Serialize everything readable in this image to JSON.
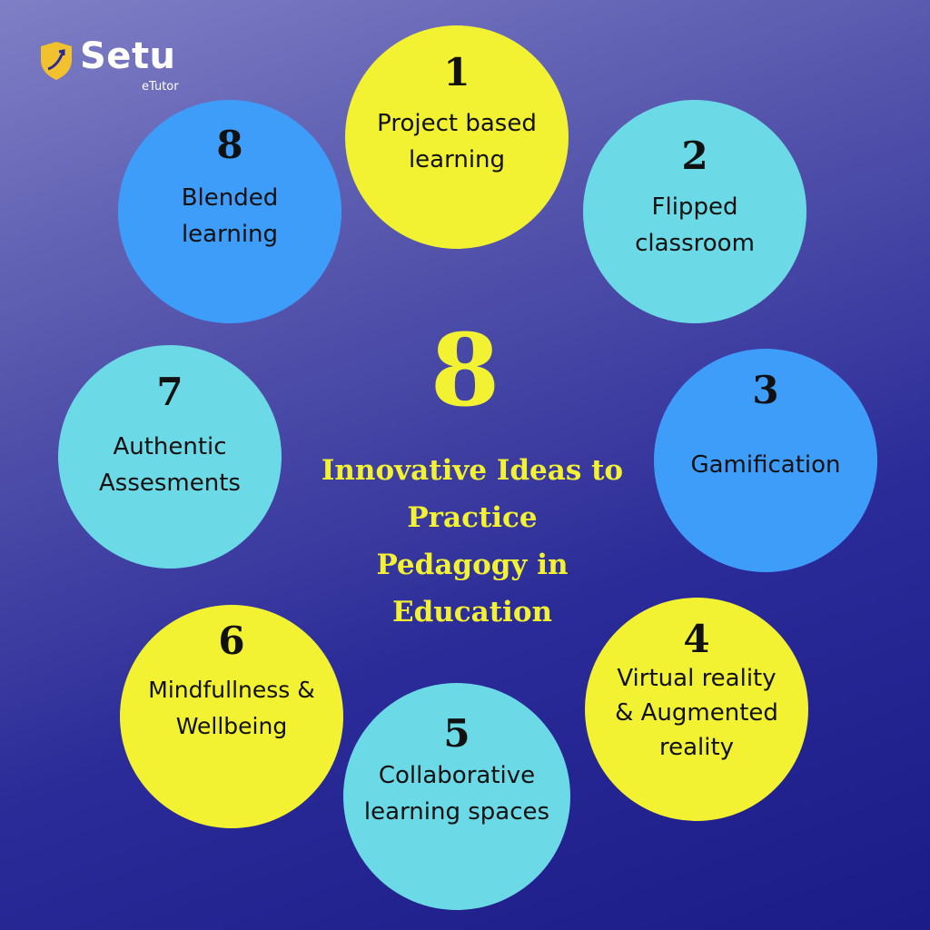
{
  "brand": {
    "name": "Setu",
    "sub": "eTutor",
    "icon": "shield-icon",
    "colors": {
      "shield": "#f2c12e",
      "text": "#ffffff"
    }
  },
  "center": {
    "number": "8",
    "title": "Innovative Ideas to\nPractice\nPedagogy in\nEducation"
  },
  "colors": {
    "yellow": "#f2f232",
    "cyan": "#6cd9e6",
    "blue": "#3f9dfa",
    "background_top": "#7f7fc6",
    "background_bottom": "#1c1c88"
  },
  "ideas": [
    {
      "number": "1",
      "label": "Project based\nlearning",
      "color": "yellow"
    },
    {
      "number": "2",
      "label": "Flipped\nclassroom",
      "color": "cyan"
    },
    {
      "number": "3",
      "label": "Gamification",
      "color": "blue"
    },
    {
      "number": "4",
      "label": "Virtual reality\n& Augmented\nreality",
      "color": "yellow"
    },
    {
      "number": "5",
      "label": "Collaborative\nlearning spaces",
      "color": "cyan"
    },
    {
      "number": "6",
      "label": "Mindfullness &\nWellbeing",
      "color": "yellow"
    },
    {
      "number": "7",
      "label": "Authentic\nAssesments",
      "color": "cyan"
    },
    {
      "number": "8",
      "label": "Blended\nlearning",
      "color": "blue"
    }
  ]
}
